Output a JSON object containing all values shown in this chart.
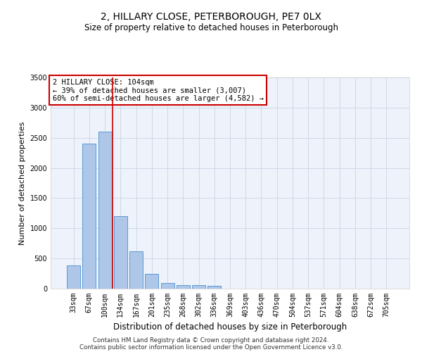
{
  "title1": "2, HILLARY CLOSE, PETERBOROUGH, PE7 0LX",
  "title2": "Size of property relative to detached houses in Peterborough",
  "xlabel": "Distribution of detached houses by size in Peterborough",
  "ylabel": "Number of detached properties",
  "categories": [
    "33sqm",
    "67sqm",
    "100sqm",
    "134sqm",
    "167sqm",
    "201sqm",
    "235sqm",
    "268sqm",
    "302sqm",
    "336sqm",
    "369sqm",
    "403sqm",
    "436sqm",
    "470sqm",
    "504sqm",
    "537sqm",
    "571sqm",
    "604sqm",
    "638sqm",
    "672sqm",
    "705sqm"
  ],
  "values": [
    380,
    2400,
    2600,
    1200,
    620,
    240,
    90,
    60,
    55,
    50,
    0,
    0,
    0,
    0,
    0,
    0,
    0,
    0,
    0,
    0,
    0
  ],
  "bar_color": "#aec6e8",
  "bar_edge_color": "#5b9bd5",
  "vline_x": 2.5,
  "vline_color": "#cc0000",
  "annotation_text": "2 HILLARY CLOSE: 104sqm\n← 39% of detached houses are smaller (3,007)\n60% of semi-detached houses are larger (4,582) →",
  "annotation_box_color": "#ffffff",
  "annotation_box_edge_color": "#cc0000",
  "ylim": [
    0,
    3500
  ],
  "yticks": [
    0,
    500,
    1000,
    1500,
    2000,
    2500,
    3000,
    3500
  ],
  "footer1": "Contains HM Land Registry data © Crown copyright and database right 2024.",
  "footer2": "Contains public sector information licensed under the Open Government Licence v3.0.",
  "background_color": "#ffffff",
  "grid_color": "#d0d8e8",
  "plot_bg_color": "#eef2fa",
  "ann_fontsize": 7.5,
  "title1_fontsize": 10,
  "title2_fontsize": 8.5,
  "ylabel_fontsize": 8,
  "xlabel_fontsize": 8.5,
  "tick_fontsize": 7
}
